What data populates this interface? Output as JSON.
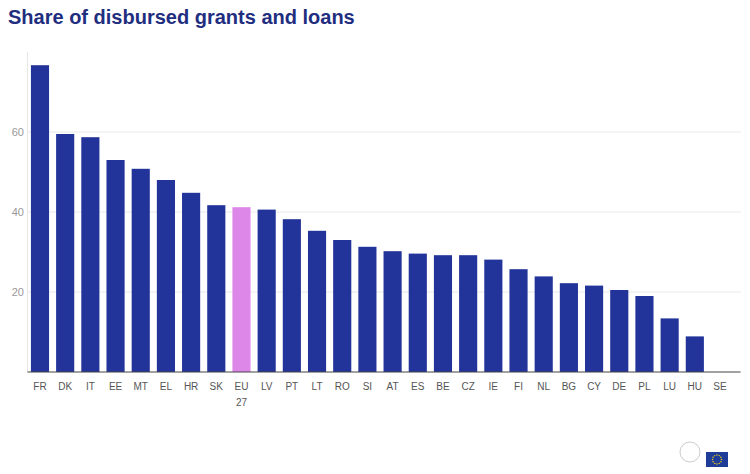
{
  "chart_data": {
    "type": "bar",
    "title": "Share of disbursed grants and loans",
    "categories": [
      "FR",
      "DK",
      "IT",
      "EE",
      "MT",
      "EL",
      "HR",
      "SK",
      "EU 27",
      "LV",
      "PT",
      "LT",
      "RO",
      "SI",
      "AT",
      "ES",
      "BE",
      "CZ",
      "IE",
      "FI",
      "NL",
      "BG",
      "CY",
      "DE",
      "PL",
      "LU",
      "HU",
      "SE"
    ],
    "values": [
      76.7,
      59.5,
      58.7,
      53,
      50.8,
      48,
      44.8,
      41.7,
      41.2,
      40.6,
      38.2,
      35.3,
      33,
      31.3,
      30.2,
      29.6,
      29.2,
      29.2,
      28.1,
      25.7,
      23.9,
      22.2,
      21.6,
      20.5,
      19,
      13.4,
      8.9,
      0
    ],
    "colors": [
      "#22339a",
      "#22339a",
      "#22339a",
      "#22339a",
      "#22339a",
      "#22339a",
      "#22339a",
      "#22339a",
      "#dd88e8",
      "#22339a",
      "#22339a",
      "#22339a",
      "#22339a",
      "#22339a",
      "#22339a",
      "#22339a",
      "#22339a",
      "#22339a",
      "#22339a",
      "#22339a",
      "#22339a",
      "#22339a",
      "#22339a",
      "#22339a",
      "#22339a",
      "#22339a",
      "#22339a",
      "#22339a"
    ],
    "ylim": [
      0,
      80
    ],
    "yticks": [
      20,
      40,
      60
    ],
    "grid": true
  }
}
